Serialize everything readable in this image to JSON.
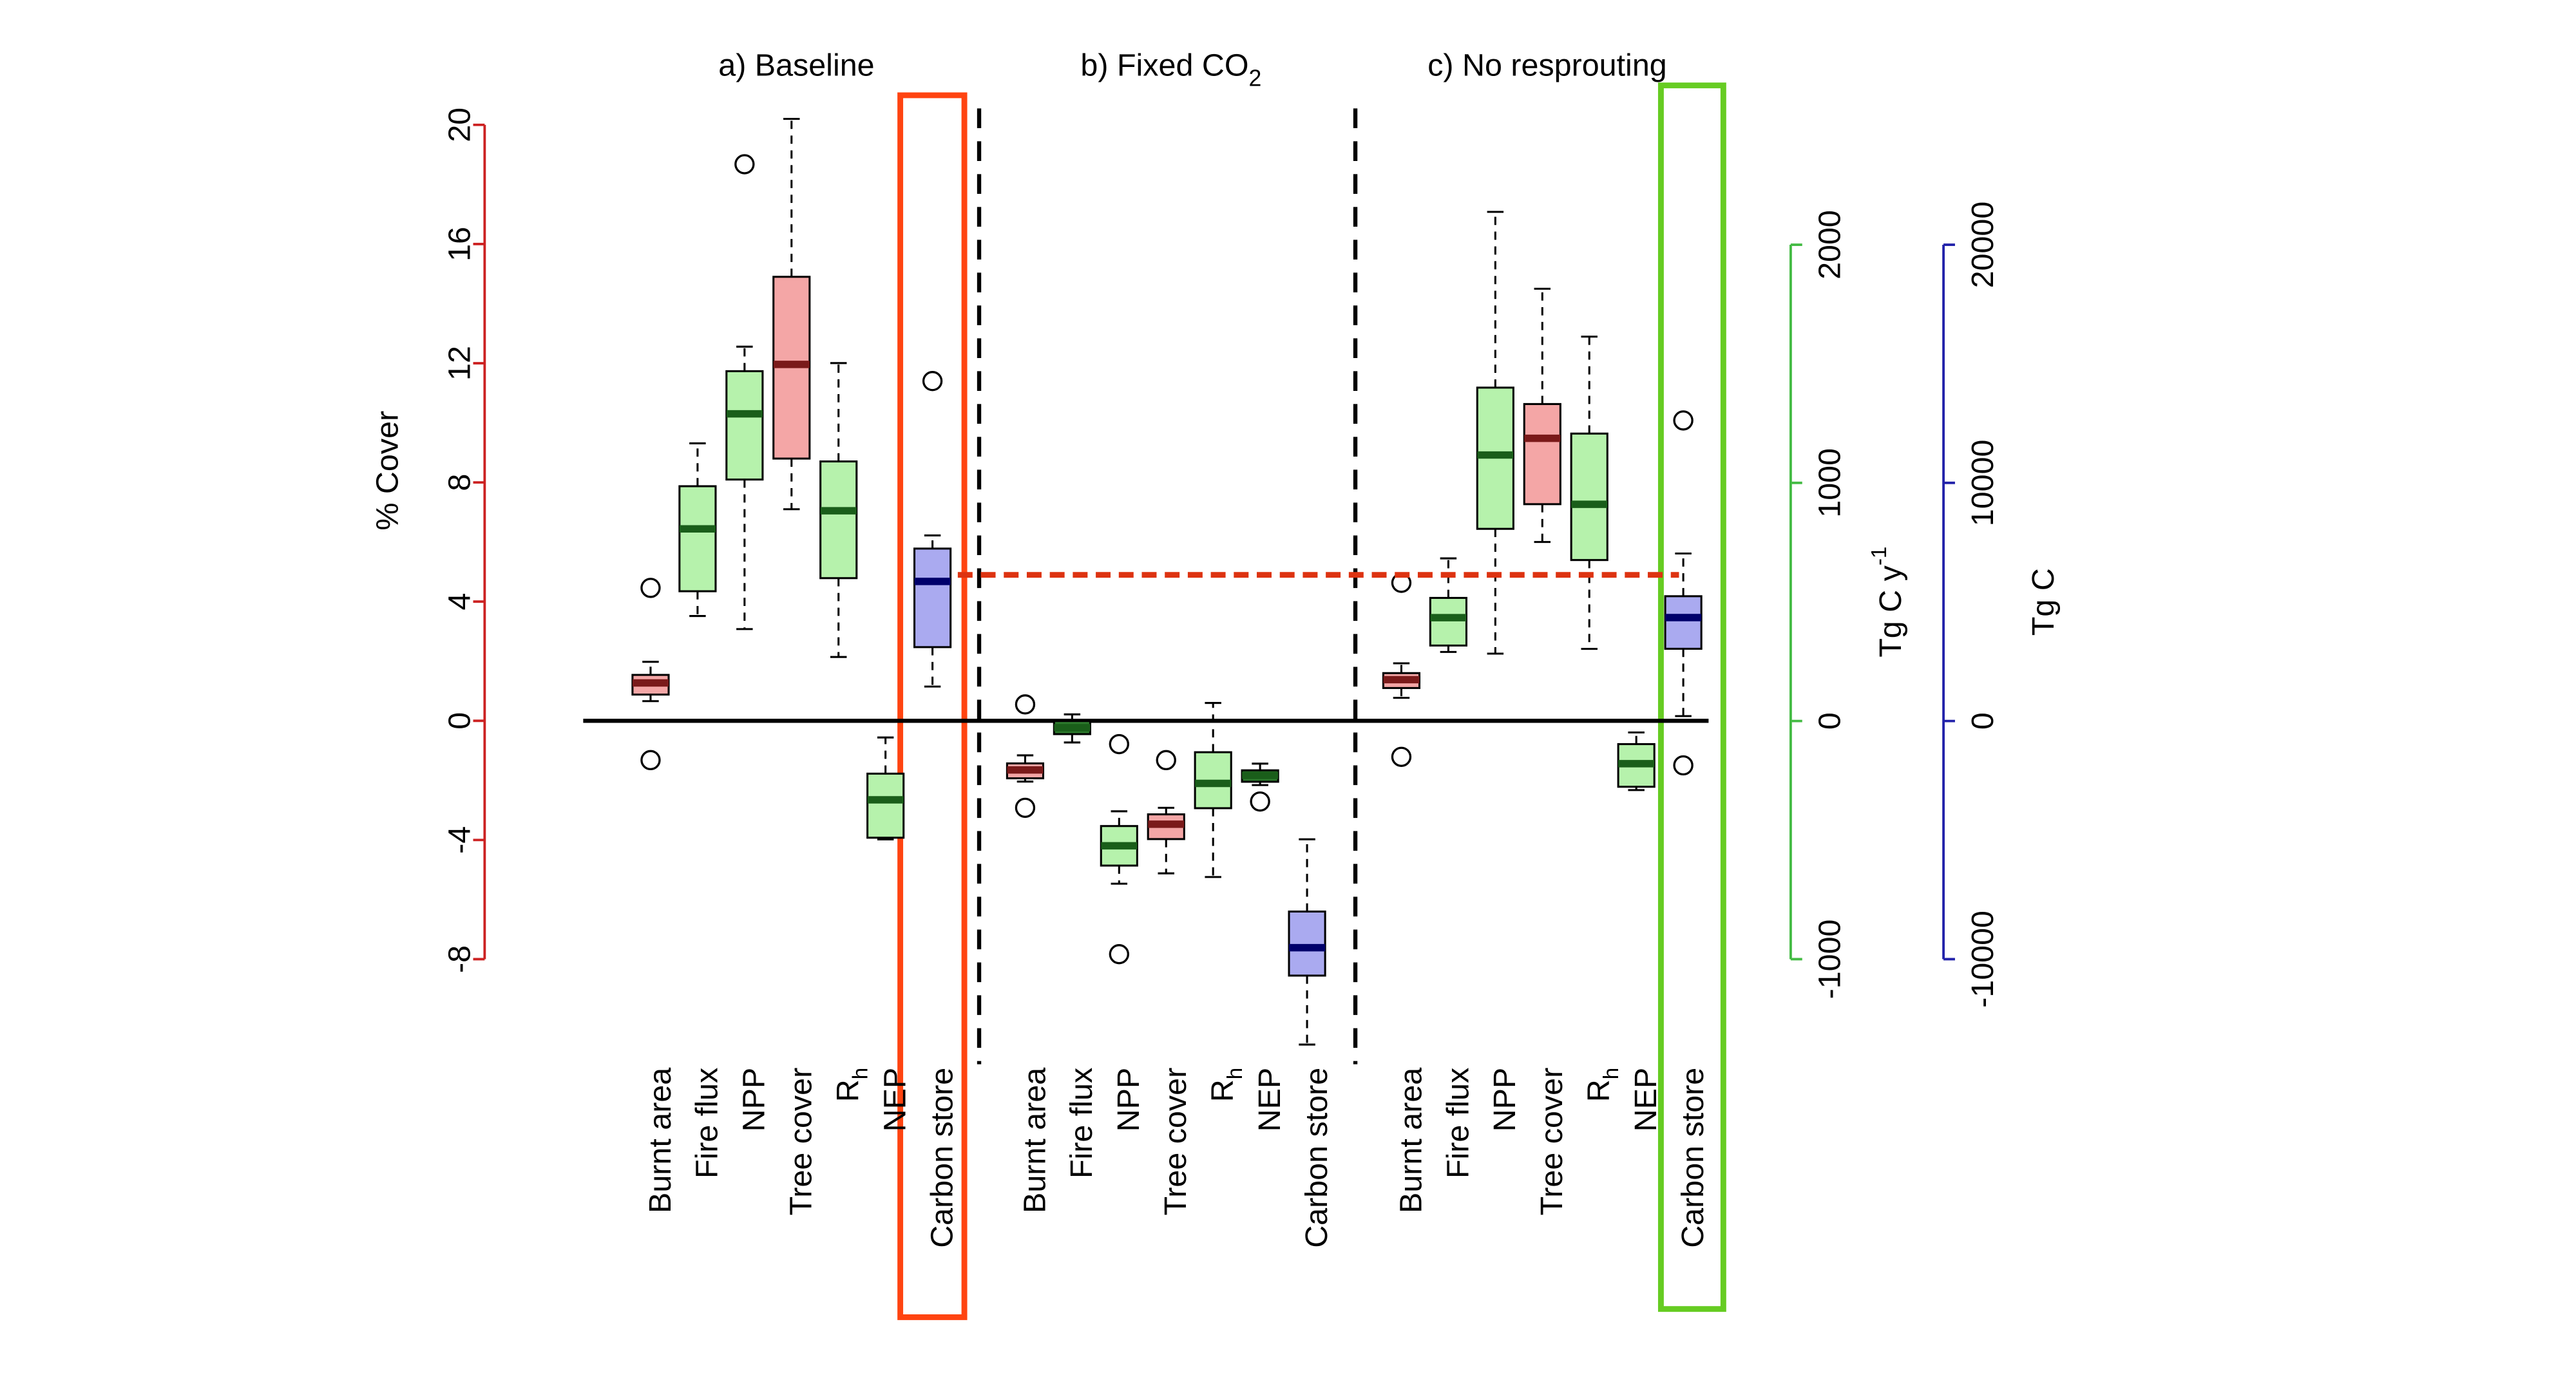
{
  "chart_data": {
    "type": "box",
    "ylabel": "% Cover",
    "ylabel_color": "#7a1a1a",
    "yaxis_color": "#cc2222",
    "ylim": [
      -8,
      20
    ],
    "yticks": [
      -8,
      -4,
      0,
      4,
      8,
      12,
      16,
      20
    ],
    "y2label": "Tg C y",
    "y2label_sup": "-1",
    "y2label_color": "#1a5e1a",
    "y2axis_color": "#44bb44",
    "y2lim": [
      -1000,
      2000
    ],
    "y2ticks": [
      -1000,
      0,
      1000,
      2000
    ],
    "y3label": "Tg C",
    "y3label_color": "#1a1a6b",
    "y3axis_color": "#2222aa",
    "y3lim": [
      -10000,
      20000
    ],
    "y3ticks": [
      -10000,
      0,
      10000,
      20000
    ],
    "reference_line": {
      "value": 6138,
      "axis": "y3",
      "color": "#dd3311"
    },
    "panels": [
      {
        "title": "a) Baseline",
        "boxes": [
          {
            "label": "Burnt area",
            "axis": "y",
            "color": "#f4a6a6",
            "median_color": "#7a1a1a",
            "min": 0.66,
            "q1": 0.88,
            "median": 1.27,
            "q3": 1.54,
            "max": 1.98,
            "outliers": [
              4.46,
              -1.32
            ]
          },
          {
            "label": "Fire flux",
            "axis": "y2",
            "color": "#b6f2ac",
            "median_color": "#1a5e1a",
            "min": 441,
            "q1": 545,
            "median": 807,
            "q3": 986,
            "max": 1166,
            "outliers": []
          },
          {
            "label": "NPP",
            "axis": "y2",
            "color": "#b6f2ac",
            "median_color": "#1a5e1a",
            "min": 386,
            "q1": 1014,
            "median": 1290,
            "q3": 1469,
            "max": 1572,
            "outliers": [
              2338
            ]
          },
          {
            "label": "Tree cover",
            "axis": "y",
            "color": "#f4a6a6",
            "median_color": "#7a1a1a",
            "min": 7.1,
            "q1": 8.8,
            "median": 11.96,
            "q3": 14.9,
            "max": 20.2,
            "outliers": []
          },
          {
            "label": "R",
            "label_sub": "h",
            "axis": "y2",
            "color": "#b6f2ac",
            "median_color": "#1a5e1a",
            "min": 269,
            "q1": 600,
            "median": 883,
            "q3": 1090,
            "max": 1503,
            "outliers": []
          },
          {
            "label": "NEP",
            "axis": "y2",
            "color": "#b6f2ac",
            "median_color": "#1a5e1a",
            "min": -497,
            "q1": -490,
            "median": -331,
            "q3": -221,
            "max": -69,
            "outliers": []
          },
          {
            "label": "Carbon store",
            "axis": "y3",
            "color": "#aaaaf0",
            "median_color": "#00006b",
            "min": 1448,
            "q1": 3103,
            "median": 5862,
            "q3": 7241,
            "max": 7793,
            "outliers": [
              14276
            ]
          }
        ]
      },
      {
        "title": "b) Fixed CO",
        "title_sub": "2",
        "boxes": [
          {
            "label": "Burnt area",
            "axis": "y",
            "color": "#f4a6a6",
            "median_color": "#7a1a1a",
            "min": -2.04,
            "q1": -1.93,
            "median": -1.65,
            "q3": -1.43,
            "max": -1.16,
            "outliers": [
              0.55,
              -2.92
            ]
          },
          {
            "label": "Fire flux",
            "axis": "y2",
            "color": "#2d7a2d",
            "median_color": "#1a5e1a",
            "min": -90,
            "q1": -55,
            "median": -28,
            "q3": 0,
            "max": 28,
            "outliers": []
          },
          {
            "label": "NPP",
            "axis": "y2",
            "color": "#b6f2ac",
            "median_color": "#1a5e1a",
            "min": -683,
            "q1": -607,
            "median": -524,
            "q3": -441,
            "max": -379,
            "outliers": [
              -97,
              -979
            ]
          },
          {
            "label": "Tree cover",
            "axis": "y",
            "color": "#f4a6a6",
            "median_color": "#7a1a1a",
            "min": -5.12,
            "q1": -3.97,
            "median": -3.47,
            "q3": -3.14,
            "max": -2.92,
            "outliers": [
              -1.32
            ]
          },
          {
            "label": "R",
            "label_sub": "h",
            "axis": "y2",
            "color": "#b6f2ac",
            "median_color": "#1a5e1a",
            "min": -655,
            "q1": -366,
            "median": -262,
            "q3": -131,
            "max": 76,
            "outliers": []
          },
          {
            "label": "NEP",
            "axis": "y2",
            "color": "#2d7a2d",
            "median_color": "#1a5e1a",
            "min": -269,
            "q1": -255,
            "median": -228,
            "q3": -207,
            "max": -179,
            "outliers": [
              -338
            ]
          },
          {
            "label": "Carbon store",
            "axis": "y3",
            "color": "#aaaaf0",
            "median_color": "#00006b",
            "min": -13586,
            "q1": -10690,
            "median": -9517,
            "q3": -8000,
            "max": -4966,
            "outliers": []
          }
        ]
      },
      {
        "title": "c) No resprouting",
        "boxes": [
          {
            "label": "Burnt area",
            "axis": "y",
            "color": "#f4a6a6",
            "median_color": "#7a1a1a",
            "min": 0.77,
            "q1": 1.1,
            "median": 1.38,
            "q3": 1.6,
            "max": 1.93,
            "outliers": [
              4.63,
              -1.21
            ]
          },
          {
            "label": "Fire flux",
            "axis": "y2",
            "color": "#b6f2ac",
            "median_color": "#1a5e1a",
            "min": 290,
            "q1": 317,
            "median": 434,
            "q3": 517,
            "max": 683,
            "outliers": []
          },
          {
            "label": "NPP",
            "axis": "y2",
            "color": "#b6f2ac",
            "median_color": "#1a5e1a",
            "min": 283,
            "q1": 807,
            "median": 1117,
            "q3": 1400,
            "max": 2138,
            "outliers": []
          },
          {
            "label": "Tree cover",
            "axis": "y",
            "color": "#f4a6a6",
            "median_color": "#7a1a1a",
            "min": 6.0,
            "q1": 7.27,
            "median": 9.48,
            "q3": 10.63,
            "max": 14.5,
            "outliers": []
          },
          {
            "label": "R",
            "label_sub": "h",
            "axis": "y2",
            "color": "#b6f2ac",
            "median_color": "#1a5e1a",
            "min": 303,
            "q1": 676,
            "median": 910,
            "q3": 1207,
            "max": 1614,
            "outliers": []
          },
          {
            "label": "NEP",
            "axis": "y2",
            "color": "#b6f2ac",
            "median_color": "#1a5e1a",
            "min": -290,
            "q1": -276,
            "median": -179,
            "q3": -97,
            "max": -48,
            "outliers": []
          },
          {
            "label": "Carbon store",
            "axis": "y3",
            "color": "#aaaaf0",
            "median_color": "#00006b",
            "min": 207,
            "q1": 3034,
            "median": 4345,
            "q3": 5241,
            "max": 7034,
            "outliers": [
              12621,
              -1862
            ]
          }
        ]
      }
    ]
  }
}
